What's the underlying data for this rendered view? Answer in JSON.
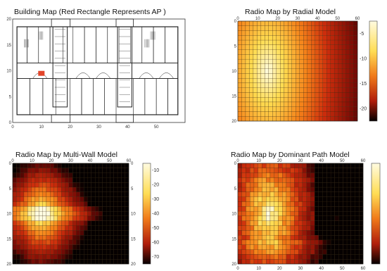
{
  "palette": {
    "ap_color": "#e2452a",
    "wall_color": "#222222",
    "grid_color": "#3a2a10"
  },
  "chart_data": [
    {
      "id": "building",
      "type": "heatmap",
      "title": "Building Map (Red Rectangle Represents AP )",
      "xlim": [
        0,
        60
      ],
      "ylim": [
        0,
        20
      ],
      "x_ticks": [
        "0",
        "10",
        "20",
        "30",
        "40",
        "50"
      ],
      "y_ticks": [
        "0",
        "5",
        "10",
        "15",
        "20"
      ],
      "ap": {
        "x": 10,
        "y": 9.5
      },
      "grid": false
    },
    {
      "id": "radial",
      "type": "heatmap",
      "title": "Radio Map by Radial Model",
      "xlim": [
        0,
        60
      ],
      "ylim": [
        0,
        20
      ],
      "x_ticks": [
        "0",
        "10",
        "20",
        "30",
        "40",
        "50",
        "60"
      ],
      "y_ticks": [
        "0",
        "5",
        "10",
        "15",
        "20"
      ],
      "colorbar_ticks": [
        "-5",
        "-10",
        "-15",
        "-20"
      ],
      "source": {
        "x": 15,
        "y": 10
      },
      "grid": true
    },
    {
      "id": "multiwall",
      "type": "heatmap",
      "title": "Radio Map by Multi-Wall Model",
      "xlim": [
        0,
        60
      ],
      "ylim": [
        0,
        20
      ],
      "x_ticks": [
        "0",
        "10",
        "20",
        "30",
        "40",
        "50",
        "60"
      ],
      "y_ticks": [
        "0",
        "5",
        "10",
        "15",
        "20"
      ],
      "colorbar_ticks": [
        "-10",
        "-20",
        "-30",
        "-40",
        "-50",
        "-60",
        "-70"
      ],
      "source": {
        "x": 15,
        "y": 10
      },
      "grid": true
    },
    {
      "id": "dominant",
      "type": "heatmap",
      "title": "Radio Map by Dominant Path Model",
      "xlim": [
        0,
        60
      ],
      "ylim": [
        0,
        20
      ],
      "x_ticks": [
        "0",
        "10",
        "20",
        "30",
        "40",
        "50",
        "60"
      ],
      "y_ticks": [
        "0",
        "5",
        "10",
        "15",
        "20"
      ],
      "colorbar_ticks": [],
      "source": {
        "x": 15,
        "y": 10
      },
      "grid": true
    }
  ]
}
